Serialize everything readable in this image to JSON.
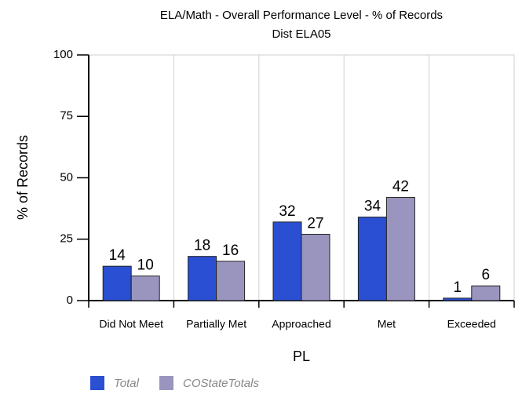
{
  "chart_data": {
    "type": "bar",
    "title": "ELA/Math - Overall Performance Level - % of Records",
    "subtitle": "Dist ELA05",
    "x_label": "PL",
    "y_label": "% of Records",
    "categories": [
      "Did Not Meet",
      "Partially Met",
      "Approached",
      "Met",
      "Exceeded"
    ],
    "series": [
      {
        "name": "Total",
        "color": "#2b4fd3",
        "values": [
          14,
          18,
          32,
          34,
          1
        ]
      },
      {
        "name": "COStateTotals",
        "color": "#9a95bf",
        "values": [
          10,
          16,
          27,
          42,
          6
        ]
      }
    ],
    "ylim": [
      0,
      100
    ],
    "yticks": [
      0,
      25,
      50,
      75,
      100
    ],
    "grid": false,
    "legend": "bottom"
  }
}
